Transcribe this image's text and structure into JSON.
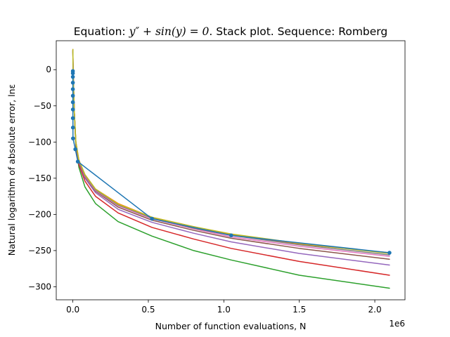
{
  "chart_data": {
    "type": "line",
    "title_prefix": "Equation: ",
    "title_equation": "y″ + sin(y) = 0",
    "title_suffix": ". Stack plot. Sequence: Romberg",
    "xlabel": "Number of function evaluations, N",
    "ylabel": "Natural logarithm of absolute error, lnε",
    "x_offset_label": "1e6",
    "xlim": [
      -110000,
      2200000
    ],
    "ylim": [
      -318,
      40
    ],
    "x_ticks": [
      0,
      500000,
      1000000,
      1500000,
      2000000
    ],
    "x_tick_labels": [
      "0.0",
      "0.5",
      "1.0",
      "1.5",
      "2.0"
    ],
    "y_ticks": [
      0,
      -50,
      -100,
      -150,
      -200,
      -250,
      -300
    ],
    "y_tick_labels": [
      "0",
      "−50",
      "−100",
      "−150",
      "−200",
      "−250",
      "−300"
    ],
    "grid": false,
    "legend": "none",
    "colors": [
      "#1f77b4",
      "#ff7f0e",
      "#2ca02c",
      "#d62728",
      "#9467bd",
      "#8c564b",
      "#e377c2",
      "#7f7f7f",
      "#bcbd22",
      "#17becf"
    ],
    "scatter_series": {
      "color": "#1f77b4",
      "points": [
        [
          1,
          -2
        ],
        [
          2,
          -5
        ],
        [
          4,
          -10
        ],
        [
          8,
          -18
        ],
        [
          16,
          -27
        ],
        [
          32,
          -36
        ],
        [
          64,
          -45
        ],
        [
          128,
          -55
        ],
        [
          256,
          -67
        ],
        [
          512,
          -80
        ],
        [
          1024,
          -95
        ],
        [
          16384,
          -110
        ],
        [
          32768,
          -127
        ],
        [
          524288,
          -206
        ],
        [
          1048576,
          -229
        ],
        [
          2097152,
          -253
        ]
      ]
    },
    "series": [
      {
        "color": "#ff7f0e",
        "values": [
          [
            200,
            28
          ],
          [
            1000,
            10
          ],
          [
            4000,
            -20
          ],
          [
            10000,
            -60
          ],
          [
            20000,
            -100
          ],
          [
            40000,
            -125
          ],
          [
            80000,
            -145
          ],
          [
            150000,
            -165
          ],
          [
            300000,
            -185
          ],
          [
            524288,
            -204
          ],
          [
            800000,
            -217
          ],
          [
            1048576,
            -228
          ],
          [
            1500000,
            -241
          ],
          [
            2097152,
            -253
          ]
        ]
      },
      {
        "color": "#2ca02c",
        "values": [
          [
            200,
            25
          ],
          [
            1000,
            8
          ],
          [
            4000,
            -22
          ],
          [
            10000,
            -62
          ],
          [
            20000,
            -108
          ],
          [
            40000,
            -135
          ],
          [
            80000,
            -162
          ],
          [
            150000,
            -185
          ],
          [
            300000,
            -210
          ],
          [
            524288,
            -230
          ],
          [
            800000,
            -250
          ],
          [
            1048576,
            -263
          ],
          [
            1500000,
            -284
          ],
          [
            2097152,
            -302
          ]
        ]
      },
      {
        "color": "#d62728",
        "values": [
          [
            200,
            26
          ],
          [
            1000,
            9
          ],
          [
            4000,
            -21
          ],
          [
            10000,
            -61
          ],
          [
            20000,
            -104
          ],
          [
            40000,
            -131
          ],
          [
            80000,
            -154
          ],
          [
            150000,
            -175
          ],
          [
            300000,
            -198
          ],
          [
            524288,
            -218
          ],
          [
            800000,
            -234
          ],
          [
            1048576,
            -247
          ],
          [
            1500000,
            -265
          ],
          [
            2097152,
            -284
          ]
        ]
      },
      {
        "color": "#9467bd",
        "values": [
          [
            200,
            27
          ],
          [
            1000,
            9
          ],
          [
            4000,
            -20
          ],
          [
            10000,
            -60
          ],
          [
            20000,
            -103
          ],
          [
            40000,
            -128
          ],
          [
            80000,
            -150
          ],
          [
            150000,
            -170
          ],
          [
            300000,
            -193
          ],
          [
            524288,
            -211
          ],
          [
            800000,
            -226
          ],
          [
            1048576,
            -238
          ],
          [
            1500000,
            -254
          ],
          [
            2097152,
            -270
          ]
        ]
      },
      {
        "color": "#8c564b",
        "values": [
          [
            200,
            27
          ],
          [
            1000,
            9
          ],
          [
            4000,
            -20
          ],
          [
            10000,
            -60
          ],
          [
            20000,
            -102
          ],
          [
            40000,
            -127
          ],
          [
            80000,
            -148
          ],
          [
            150000,
            -168
          ],
          [
            300000,
            -190
          ],
          [
            524288,
            -208
          ],
          [
            800000,
            -222
          ],
          [
            1048576,
            -233
          ],
          [
            1500000,
            -247
          ],
          [
            2097152,
            -262
          ]
        ]
      },
      {
        "color": "#e377c2",
        "values": [
          [
            200,
            27
          ],
          [
            1000,
            10
          ],
          [
            4000,
            -20
          ],
          [
            10000,
            -60
          ],
          [
            20000,
            -101
          ],
          [
            40000,
            -126
          ],
          [
            80000,
            -147
          ],
          [
            150000,
            -167
          ],
          [
            300000,
            -188
          ],
          [
            524288,
            -206
          ],
          [
            800000,
            -220
          ],
          [
            1048576,
            -231
          ],
          [
            1500000,
            -244
          ],
          [
            2097152,
            -258
          ]
        ]
      },
      {
        "color": "#7f7f7f",
        "values": [
          [
            200,
            27
          ],
          [
            1000,
            10
          ],
          [
            4000,
            -20
          ],
          [
            10000,
            -60
          ],
          [
            20000,
            -101
          ],
          [
            40000,
            -126
          ],
          [
            80000,
            -146
          ],
          [
            150000,
            -166
          ],
          [
            300000,
            -187
          ],
          [
            524288,
            -205
          ],
          [
            800000,
            -219
          ],
          [
            1048576,
            -229
          ],
          [
            1500000,
            -242
          ],
          [
            2097152,
            -256
          ]
        ]
      },
      {
        "color": "#bcbd22",
        "values": [
          [
            200,
            28
          ],
          [
            1000,
            10
          ],
          [
            4000,
            -20
          ],
          [
            10000,
            -60
          ],
          [
            20000,
            -100
          ],
          [
            40000,
            -125
          ],
          [
            80000,
            -145
          ],
          [
            150000,
            -165
          ],
          [
            300000,
            -186
          ],
          [
            524288,
            -204
          ],
          [
            800000,
            -217
          ],
          [
            1048576,
            -227
          ],
          [
            1500000,
            -240
          ],
          [
            2097152,
            -254
          ]
        ]
      }
    ]
  }
}
